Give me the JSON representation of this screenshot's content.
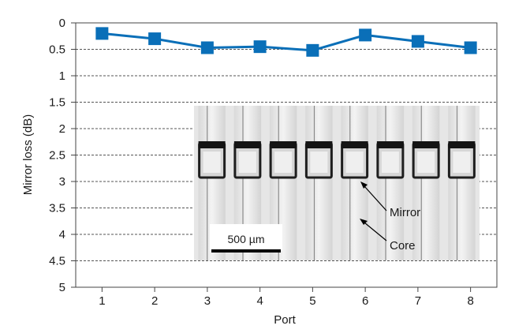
{
  "chart_data": {
    "type": "line",
    "title": "",
    "xlabel": "Port",
    "ylabel": "Mirror loss (dB)",
    "x": [
      1,
      2,
      3,
      4,
      5,
      6,
      7,
      8
    ],
    "xlim": [
      0.5,
      8.5
    ],
    "ylim": [
      0,
      5
    ],
    "y_inverted": true,
    "y_ticks": [
      "0",
      "0.5",
      "1",
      "1.5",
      "2",
      "2.5",
      "3",
      "3.5",
      "4",
      "4.5",
      "5"
    ],
    "x_ticks": [
      "1",
      "2",
      "3",
      "4",
      "5",
      "6",
      "7",
      "8"
    ],
    "grid": "horizontal dashed",
    "series": [
      {
        "values": [
          0.2,
          0.3,
          0.47,
          0.45,
          0.52,
          0.23,
          0.35,
          0.47
        ],
        "color": "#0a6fb8",
        "marker": "square"
      }
    ],
    "inset": {
      "description": "micrograph",
      "labels": {
        "mirror": "Mirror",
        "core": "Core",
        "scale_bar": "500 µm"
      },
      "channel_count": 8
    }
  }
}
